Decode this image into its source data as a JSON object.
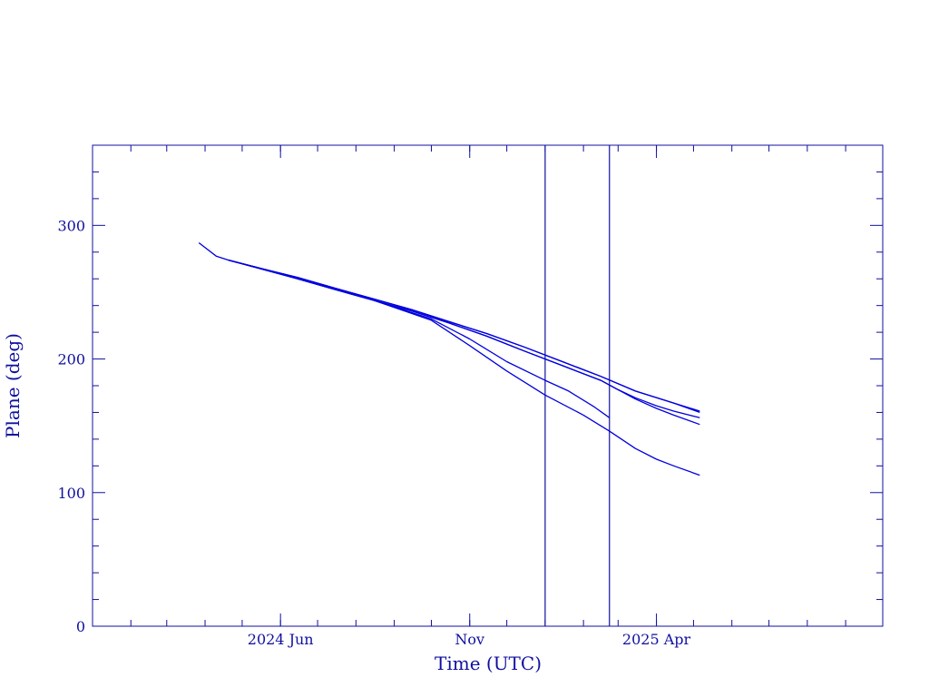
{
  "chart_data": {
    "type": "line",
    "title": "",
    "xlabel": "Time (UTC)",
    "ylabel": "Plane (deg)",
    "x_range": [
      "2024-01-01",
      "2025-10-01"
    ],
    "ylim": [
      0,
      360
    ],
    "y_ticks": [
      0,
      100,
      200,
      300
    ],
    "x_ticks": [
      {
        "date": "2024-06-01",
        "label": "2024 Jun"
      },
      {
        "date": "2024-11-01",
        "label": "Nov"
      },
      {
        "date": "2025-04-01",
        "label": "2025 Apr"
      }
    ],
    "vertical_markers": [
      "2025-01-01",
      "2025-02-22"
    ],
    "grid": false,
    "colors": {
      "axis": "#1010a0",
      "series": "#0000dd",
      "markers": "#1010a0"
    },
    "series": [
      {
        "x": [
          "2024-03-27",
          "2024-04-10",
          "2024-04-20",
          "2024-05-15",
          "2024-06-15",
          "2024-07-15",
          "2024-08-15",
          "2024-09-15",
          "2024-10-15",
          "2024-11-15",
          "2024-12-15",
          "2025-01-15",
          "2025-02-15",
          "2025-03-15",
          "2025-04-15",
          "2025-05-06"
        ],
        "y": [
          287,
          277,
          274,
          268,
          261,
          253,
          245,
          237,
          228,
          219,
          209,
          198,
          187,
          176,
          167,
          161
        ]
      },
      {
        "x": [
          "2024-04-20",
          "2024-05-15",
          "2024-06-15",
          "2024-07-15",
          "2024-08-15",
          "2024-09-15",
          "2024-10-15",
          "2024-11-15",
          "2024-12-15",
          "2025-01-15",
          "2025-02-15",
          "2025-03-15",
          "2025-04-15",
          "2025-05-06"
        ],
        "y": [
          274,
          268,
          261,
          253,
          245,
          237,
          228,
          219,
          209,
          198,
          187,
          176,
          167,
          160
        ]
      },
      {
        "x": [
          "2024-04-20",
          "2024-05-15",
          "2024-06-15",
          "2024-07-15",
          "2024-08-15",
          "2024-09-15",
          "2024-10-15",
          "2024-11-15",
          "2024-12-15",
          "2025-01-15",
          "2025-02-15",
          "2025-03-01",
          "2025-03-15",
          "2025-04-01",
          "2025-04-15",
          "2025-05-06"
        ],
        "y": [
          274,
          268,
          260,
          252,
          244,
          236,
          227,
          217,
          206,
          195,
          184,
          177,
          171,
          165,
          161,
          156
        ]
      },
      {
        "x": [
          "2024-04-20",
          "2024-05-15",
          "2024-06-15",
          "2024-07-15",
          "2024-08-15",
          "2024-09-15",
          "2024-10-15",
          "2024-11-15",
          "2024-12-15",
          "2025-01-15",
          "2025-02-15",
          "2025-03-01",
          "2025-03-15",
          "2025-04-01",
          "2025-04-15",
          "2025-05-06"
        ],
        "y": [
          274,
          268,
          260,
          252,
          244,
          236,
          227,
          217,
          206,
          195,
          184,
          177,
          170,
          163,
          158,
          151
        ]
      },
      {
        "x": [
          "2024-04-20",
          "2024-06-15",
          "2024-08-15",
          "2024-10-01",
          "2024-11-01",
          "2024-12-01",
          "2025-01-01",
          "2025-01-20",
          "2025-02-10",
          "2025-02-22"
        ],
        "y": [
          274,
          260,
          244,
          230,
          215,
          198,
          184,
          176,
          164,
          156
        ]
      },
      {
        "x": [
          "2024-04-20",
          "2024-06-15",
          "2024-08-15",
          "2024-10-01",
          "2024-11-01",
          "2024-12-01",
          "2025-01-01",
          "2025-02-01",
          "2025-02-22",
          "2025-03-15",
          "2025-04-01",
          "2025-04-15",
          "2025-05-06"
        ],
        "y": [
          274,
          260,
          244,
          229,
          210,
          191,
          173,
          158,
          146,
          133,
          125,
          120,
          113
        ]
      }
    ]
  }
}
